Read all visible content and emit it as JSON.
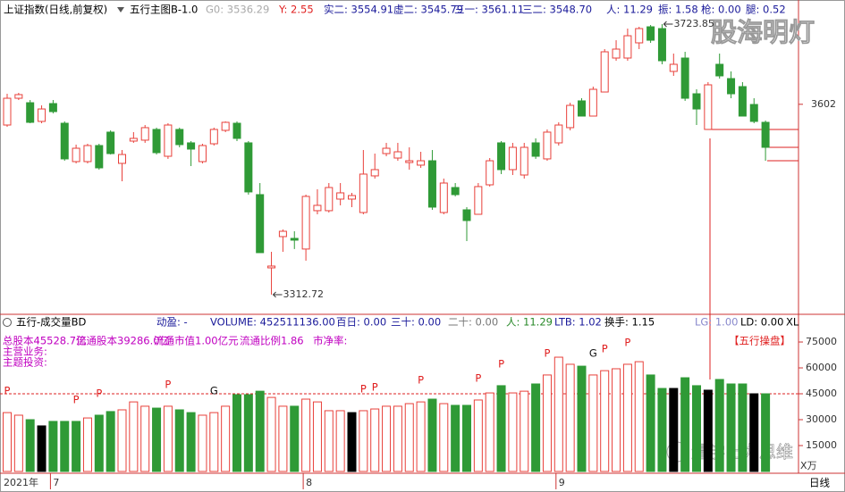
{
  "header": {
    "title": "上证指数(日线,前复权)",
    "indicator": "五行主图B-1.0",
    "items": [
      "G0: 3536.29",
      "Y: 2.55",
      "实二: 3554.91",
      "虚二: 3545.79",
      "三一: 3561.11",
      "三二: 3548.70",
      "人: 11.29",
      "振: 1.58",
      "枪: 0.00",
      "腿: 0.52"
    ],
    "watermark": "股海明灯"
  },
  "volume_header": {
    "indicator": "五行-成交量BD",
    "items": [
      "动盈: -",
      "VOLUME: 452511136.00",
      "百日: 0.00",
      "三十: 0.00",
      "二十: 0.00",
      "人: 11.29",
      "LTB: 1.02",
      "换手: 1.15",
      "LG: 1.00",
      "LD: 0.00",
      "XL"
    ]
  },
  "info": {
    "line1": [
      "总股本45528.7亿",
      "流通股本39286.0亿",
      "流通市值1.00亿元",
      "流通比例1.86",
      "市净率:"
    ],
    "line2": "主营业务:",
    "line3": "主题投资:",
    "badge": "【五行操盘】",
    "watermark": "量学出力思维",
    "corner": "X万"
  },
  "period": "日线",
  "chart_data": [
    {
      "type": "candlestick",
      "up_color": "#e8403a",
      "down_color": "#2f9a36",
      "hollow_up": true,
      "ylim": [
        3285.5,
        3736.1
      ],
      "yticks": [
        3602
      ],
      "annotations": [
        "3723.85",
        "3312.72"
      ],
      "open": [
        3570.5,
        3611.2,
        3604.4,
        3576.0,
        3603.1,
        3573.2,
        3514.9,
        3514.9,
        3539.3,
        3559.7,
        3512.2,
        3546.1,
        3547.5,
        3563.8,
        3523.0,
        3563.8,
        3543.4,
        3514.9,
        3542.0,
        3562.4,
        3573.2,
        3543.4,
        3464.7,
        3353.4,
        3400.9,
        3398.2,
        3382.0,
        3440.3,
        3440.3,
        3457.9,
        3457.9,
        3437.5,
        3493.2,
        3527.1,
        3520.3,
        3513.5,
        3509.5,
        3516.2,
        3437.5,
        3475.5,
        3441.6,
        3434.8,
        3479.6,
        3543.4,
        3502.7,
        3494.5,
        3543.4,
        3519.0,
        3543.4,
        3566.5,
        3607.2,
        3584.1,
        3620.7,
        3672.3,
        3672.3,
        3695.4,
        3719.8,
        3717.1,
        3652.0,
        3672.3,
        3618.0,
        3563.8,
        3662.8,
        3641.1,
        3628.9,
        3601.7,
        3574.6
      ],
      "high": [
        3618.0,
        3619.4,
        3608.5,
        3600.4,
        3608.5,
        3576.0,
        3540.7,
        3542.0,
        3542.0,
        3562.4,
        3532.5,
        3559.7,
        3570.5,
        3566.5,
        3573.2,
        3566.5,
        3546.1,
        3542.0,
        3566.5,
        3576.0,
        3576.0,
        3546.1,
        3482.3,
        3377.8,
        3411.8,
        3409.0,
        3464.7,
        3472.8,
        3482.3,
        3482.3,
        3467.4,
        3532.5,
        3527.1,
        3543.4,
        3543.4,
        3536.6,
        3529.8,
        3532.5,
        3489.1,
        3482.3,
        3445.7,
        3482.3,
        3520.3,
        3546.1,
        3543.4,
        3543.4,
        3550.2,
        3563.8,
        3574.6,
        3604.4,
        3611.2,
        3628.9,
        3685.9,
        3699.4,
        3717.1,
        3719.8,
        3722.5,
        3723.85,
        3679.1,
        3681.8,
        3624.8,
        3635.7,
        3679.1,
        3652.0,
        3635.7,
        3611.2,
        3577.3
      ],
      "low": [
        3567.8,
        3608.5,
        3573.2,
        3573.2,
        3588.2,
        3516.2,
        3512.2,
        3512.2,
        3502.7,
        3525.7,
        3485.0,
        3543.4,
        3543.4,
        3525.7,
        3519.0,
        3536.6,
        3508.1,
        3512.2,
        3539.3,
        3559.7,
        3546.1,
        3464.7,
        3376.5,
        3312.72,
        3377.8,
        3382.0,
        3364.3,
        3434.8,
        3437.5,
        3448.4,
        3445.7,
        3434.8,
        3489.1,
        3523.0,
        3516.2,
        3502.7,
        3505.4,
        3441.6,
        3434.8,
        3462.0,
        3394.1,
        3434.8,
        3476.9,
        3495.9,
        3494.5,
        3489.1,
        3519.0,
        3516.2,
        3539.3,
        3562.4,
        3584.1,
        3584.1,
        3620.7,
        3668.2,
        3668.2,
        3685.9,
        3695.4,
        3662.8,
        3645.2,
        3607.2,
        3570.5,
        3563.8,
        3641.1,
        3611.2,
        3584.1,
        3573.2,
        3516.2
      ],
      "close": [
        3611.2,
        3616.7,
        3574.6,
        3594.9,
        3590.9,
        3519.0,
        3535.2,
        3539.3,
        3505.4,
        3527.1,
        3525.7,
        3550.2,
        3566.5,
        3528.5,
        3570.5,
        3540.7,
        3533.9,
        3539.3,
        3563.8,
        3574.6,
        3550.2,
        3468.8,
        3376.5,
        3356.1,
        3409.0,
        3395.5,
        3462.0,
        3448.4,
        3475.5,
        3467.4,
        3463.3,
        3495.9,
        3502.7,
        3535.2,
        3529.8,
        3516.2,
        3516.2,
        3445.7,
        3482.3,
        3464.7,
        3425.3,
        3476.9,
        3516.2,
        3502.7,
        3536.6,
        3536.6,
        3523.0,
        3559.7,
        3570.5,
        3600.4,
        3584.1,
        3624.8,
        3681.8,
        3685.9,
        3706.2,
        3717.1,
        3699.4,
        3668.2,
        3662.8,
        3611.2,
        3594.9,
        3631.6,
        3645.2,
        3618.0,
        3584.1,
        3576.0,
        3536.6
      ]
    },
    {
      "type": "bar",
      "up_color": "#e8403a",
      "hollow_up": true,
      "ylim": [
        0,
        80700
      ],
      "yticks": [
        15000,
        30000,
        45000,
        60000,
        75000
      ],
      "year_label": "2021年",
      "categories": [
        null,
        null,
        null,
        null,
        "7",
        null,
        null,
        null,
        null,
        null,
        null,
        null,
        null,
        null,
        null,
        null,
        null,
        null,
        null,
        null,
        null,
        null,
        null,
        null,
        null,
        null,
        "8",
        null,
        null,
        null,
        null,
        null,
        null,
        null,
        null,
        null,
        null,
        null,
        null,
        null,
        null,
        null,
        null,
        null,
        null,
        null,
        null,
        null,
        "9",
        null,
        null,
        null,
        null,
        null,
        null,
        null,
        null,
        null,
        null,
        null,
        null,
        null,
        null,
        null,
        null,
        null,
        null
      ],
      "values": [
        34100,
        32600,
        30000,
        26400,
        29000,
        29000,
        29000,
        31000,
        32600,
        34700,
        35700,
        40300,
        37800,
        36700,
        37800,
        35700,
        34100,
        32600,
        34100,
        37800,
        44500,
        44500,
        46500,
        42900,
        37800,
        37800,
        41900,
        40300,
        35200,
        35200,
        34100,
        35200,
        36200,
        37800,
        37800,
        39300,
        40300,
        41900,
        39300,
        38300,
        38300,
        41400,
        45500,
        49700,
        45500,
        46500,
        50700,
        55900,
        66200,
        62100,
        61000,
        55900,
        58400,
        59500,
        62100,
        63600,
        55900,
        48100,
        48100,
        54300,
        49700,
        47100,
        53300,
        50700,
        50700,
        45000,
        45000
      ],
      "colors": [
        "#e8403a",
        "#e8403a",
        "#2f9a36",
        "#000000",
        "#2f9a36",
        "#2f9a36",
        "#2f9a36",
        "#e8403a",
        "#2f9a36",
        "#2f9a36",
        "#e8403a",
        "#e8403a",
        "#e8403a",
        "#2f9a36",
        "#e8403a",
        "#2f9a36",
        "#2f9a36",
        "#e8403a",
        "#e8403a",
        "#e8403a",
        "#2f9a36",
        "#2f9a36",
        "#2f9a36",
        "#e8403a",
        "#e8403a",
        "#2f9a36",
        "#e8403a",
        "#e8403a",
        "#e8403a",
        "#e8403a",
        "#000000",
        "#e8403a",
        "#e8403a",
        "#e8403a",
        "#e8403a",
        "#e8403a",
        "#e8403a",
        "#2f9a36",
        "#e8403a",
        "#2f9a36",
        "#2f9a36",
        "#e8403a",
        "#e8403a",
        "#2f9a36",
        "#e8403a",
        "#e8403a",
        "#2f9a36",
        "#e8403a",
        "#e8403a",
        "#e8403a",
        "#2f9a36",
        "#e8403a",
        "#e8403a",
        "#e8403a",
        "#e8403a",
        "#e8403a",
        "#2f9a36",
        "#2f9a36",
        "#000000",
        "#2f9a36",
        "#2f9a36",
        "#000000",
        "#2f9a36",
        "#2f9a36",
        "#2f9a36",
        "#000000",
        "#2f9a36"
      ],
      "signals": [
        "P",
        null,
        null,
        null,
        null,
        null,
        "P",
        null,
        "P",
        null,
        null,
        null,
        null,
        null,
        "P",
        null,
        null,
        null,
        "G",
        null,
        null,
        null,
        null,
        null,
        null,
        null,
        null,
        null,
        null,
        null,
        null,
        "P",
        "P",
        null,
        null,
        null,
        "P",
        null,
        null,
        null,
        null,
        "P",
        null,
        "P",
        null,
        null,
        null,
        "P",
        null,
        null,
        null,
        "G",
        "P",
        null,
        "P",
        null,
        null,
        null,
        null,
        null,
        null,
        null,
        null,
        null,
        null,
        null,
        null
      ]
    }
  ]
}
